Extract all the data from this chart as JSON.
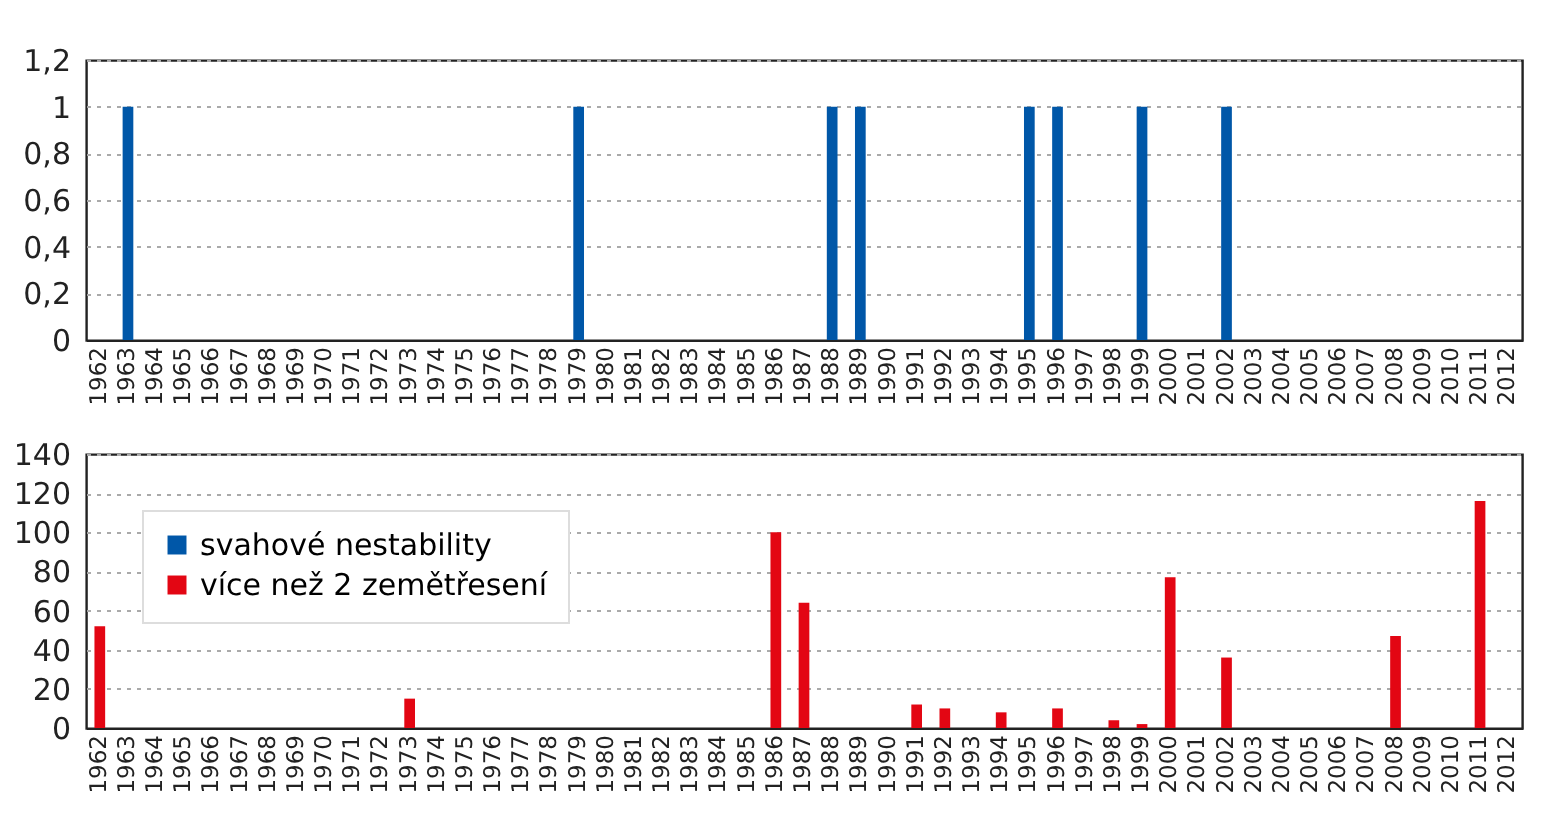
{
  "chart_data": [
    {
      "type": "bar",
      "categories": [
        "1962",
        "1963",
        "1964",
        "1965",
        "1966",
        "1967",
        "1968",
        "1969",
        "1970",
        "1971",
        "1972",
        "1973",
        "1974",
        "1975",
        "1976",
        "1977",
        "1978",
        "1979",
        "1980",
        "1981",
        "1982",
        "1983",
        "1984",
        "1985",
        "1986",
        "1987",
        "1988",
        "1989",
        "1990",
        "1991",
        "1992",
        "1993",
        "1994",
        "1995",
        "1996",
        "1997",
        "1998",
        "1999",
        "2000",
        "2001",
        "2002",
        "2003",
        "2004",
        "2005",
        "2006",
        "2007",
        "2008",
        "2009",
        "2010",
        "2011",
        "2012"
      ],
      "series": [
        {
          "name": "svahové nestability",
          "color": "#0057a8",
          "values": [
            null,
            1,
            null,
            null,
            null,
            null,
            null,
            null,
            null,
            null,
            null,
            null,
            null,
            null,
            null,
            null,
            null,
            1,
            null,
            null,
            null,
            null,
            null,
            null,
            null,
            null,
            1,
            1,
            null,
            null,
            null,
            null,
            null,
            1,
            1,
            null,
            null,
            1,
            null,
            null,
            1,
            null,
            null,
            null,
            null,
            null,
            null,
            null,
            null,
            null,
            null
          ]
        }
      ],
      "ylim": [
        0,
        1.2
      ],
      "yticks": [
        0,
        {
          "value": 0.2,
          "label": "0,2"
        },
        {
          "value": 0.4,
          "label": "0,4"
        },
        {
          "value": 0.6,
          "label": "0,6"
        },
        {
          "value": 0.8,
          "label": "0,8"
        },
        1,
        {
          "value": 1.2,
          "label": "1,2"
        }
      ],
      "grid": "y",
      "legend": "bottom"
    },
    {
      "type": "bar",
      "categories": [
        "1962",
        "1963",
        "1964",
        "1965",
        "1966",
        "1967",
        "1968",
        "1969",
        "1970",
        "1971",
        "1972",
        "1973",
        "1974",
        "1975",
        "1976",
        "1977",
        "1978",
        "1979",
        "1980",
        "1981",
        "1982",
        "1983",
        "1984",
        "1985",
        "1986",
        "1987",
        "1988",
        "1989",
        "1990",
        "1991",
        "1992",
        "1993",
        "1994",
        "1995",
        "1996",
        "1997",
        "1998",
        "1999",
        "2000",
        "2001",
        "2002",
        "2003",
        "2004",
        "2005",
        "2006",
        "2007",
        "2008",
        "2009",
        "2010",
        "2011",
        "2012"
      ],
      "series": [
        {
          "name": "více než 2 zemětřesení",
          "color": "#e30613",
          "values": [
            52,
            null,
            null,
            null,
            null,
            null,
            null,
            null,
            null,
            null,
            null,
            15,
            null,
            null,
            null,
            null,
            null,
            null,
            null,
            null,
            null,
            null,
            null,
            null,
            100,
            64,
            null,
            null,
            null,
            12,
            10,
            null,
            8,
            null,
            10,
            null,
            4,
            2,
            77,
            null,
            36,
            null,
            null,
            null,
            null,
            null,
            47,
            null,
            null,
            116,
            null
          ]
        }
      ],
      "ylim": [
        0,
        140
      ],
      "yticks": [
        0,
        20,
        40,
        60,
        80,
        100,
        120,
        140
      ],
      "grid": "y",
      "legend": "top left"
    }
  ]
}
